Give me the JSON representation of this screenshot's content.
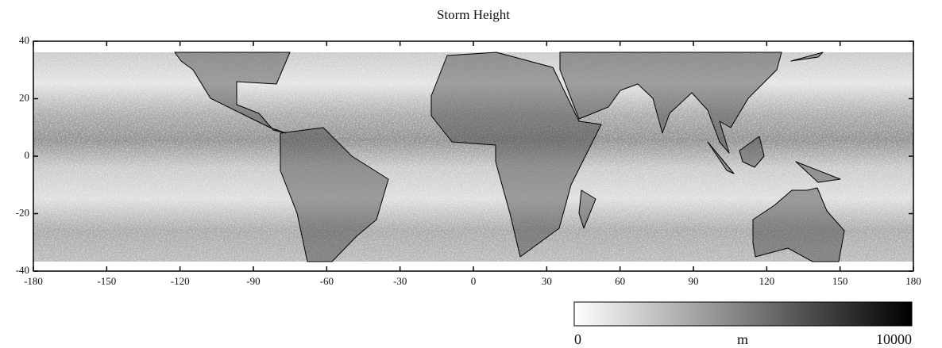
{
  "map": {
    "title": "Storm Height",
    "xlim": [
      -180,
      180
    ],
    "xticks": [
      -180,
      -150,
      -120,
      -90,
      -60,
      -30,
      0,
      30,
      60,
      90,
      120,
      150,
      180
    ],
    "ylim": [
      -40,
      40
    ],
    "yticks": [
      -40,
      -20,
      0,
      20,
      40
    ],
    "colorbar": {
      "lim": [
        0,
        10000
      ],
      "ticks": [
        0,
        10000
      ],
      "label": "m"
    }
  }
}
